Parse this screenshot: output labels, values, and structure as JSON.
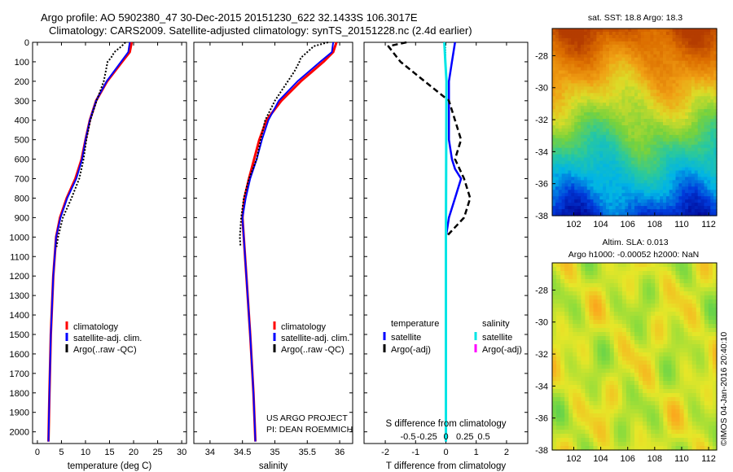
{
  "title": {
    "line1": "Argo profile: AO 5902380_47 30-Dec-2015 20151230_622 32.1433S 106.3017E",
    "line2": "Climatology: CARS2009. Satellite-adjusted climatology: synTS_20151228.nc (2.4d earlier)"
  },
  "colors": {
    "climatology": "#ff0000",
    "satellite": "#0000ff",
    "argo": "#000000",
    "sal_satellite": "#00e5e5",
    "sal_argo": "#ff00ff"
  },
  "depth_ticks": [
    "0",
    "100",
    "200",
    "300",
    "400",
    "500",
    "600",
    "700",
    "800",
    "900",
    "1000",
    "1100",
    "1200",
    "1300",
    "1400",
    "1500",
    "1600",
    "1700",
    "1800",
    "1900",
    "2000"
  ],
  "chart_data": [
    {
      "type": "line",
      "name": "temperature",
      "xlabel": "temperature (deg C)",
      "xlim": [
        -1,
        31
      ],
      "xticks": [
        "0",
        "5",
        "10",
        "15",
        "20",
        "25",
        "30"
      ],
      "ylim": [
        0,
        2060
      ],
      "series": [
        {
          "name": "climatology",
          "depth": [
            0,
            50,
            100,
            200,
            300,
            400,
            500,
            600,
            700,
            800,
            900,
            1000,
            1200,
            1500,
            1800,
            2050
          ],
          "values": [
            19.6,
            19.2,
            17.6,
            14.5,
            12.2,
            10.9,
            10.0,
            9.2,
            7.9,
            6.1,
            4.7,
            3.9,
            3.3,
            2.8,
            2.5,
            2.3
          ]
        },
        {
          "name": "satellite-adj. clim.",
          "depth": [
            0,
            50,
            100,
            200,
            300,
            400,
            500,
            600,
            700,
            800,
            900,
            1000,
            1200,
            1500,
            1800,
            2050
          ],
          "values": [
            19.2,
            18.9,
            17.4,
            14.4,
            12.2,
            10.9,
            10.0,
            9.3,
            8.1,
            6.2,
            4.8,
            3.9,
            3.3,
            2.8,
            2.5,
            2.3
          ]
        },
        {
          "name": "Argo(..raw -QC)",
          "depth": [
            0,
            20,
            50,
            80,
            100,
            150,
            200,
            300,
            400,
            500,
            600,
            700,
            800,
            900,
            1000,
            1050
          ],
          "values": [
            18.3,
            17.5,
            16.0,
            15.3,
            14.6,
            14.2,
            13.8,
            12.3,
            11.0,
            10.2,
            9.6,
            8.7,
            7.1,
            5.3,
            4.3,
            4.0
          ]
        }
      ],
      "legend": [
        "climatology",
        "satellite-adj. clim.",
        "Argo(..raw -QC)"
      ]
    },
    {
      "type": "line",
      "name": "salinity",
      "xlabel": "salinity",
      "xlim": [
        33.75,
        36.2
      ],
      "xticks": [
        "34",
        "34.5",
        "35",
        "35.5",
        "36"
      ],
      "ylim": [
        0,
        2060
      ],
      "series": [
        {
          "name": "climatology",
          "depth": [
            0,
            50,
            100,
            200,
            300,
            400,
            500,
            600,
            700,
            800,
            900,
            1000,
            1200,
            1500,
            1800,
            2050
          ],
          "values": [
            35.95,
            35.9,
            35.75,
            35.4,
            35.1,
            34.87,
            34.76,
            34.68,
            34.6,
            34.53,
            34.5,
            34.52,
            34.56,
            34.62,
            34.67,
            34.7
          ]
        },
        {
          "name": "satellite-adj. clim.",
          "depth": [
            0,
            50,
            100,
            200,
            300,
            400,
            500,
            600,
            700,
            800,
            900,
            1000,
            1200,
            1500,
            1800,
            2050
          ],
          "values": [
            35.9,
            35.88,
            35.7,
            35.35,
            35.06,
            34.9,
            34.8,
            34.72,
            34.62,
            34.55,
            34.5,
            34.52,
            34.56,
            34.62,
            34.67,
            34.7
          ]
        },
        {
          "name": "Argo(..raw -QC)",
          "depth": [
            0,
            20,
            50,
            80,
            100,
            150,
            200,
            300,
            400,
            500,
            600,
            700,
            800,
            900,
            1000,
            1050
          ],
          "values": [
            35.82,
            35.6,
            35.5,
            35.4,
            35.38,
            35.3,
            35.2,
            35.0,
            34.85,
            34.78,
            34.72,
            34.6,
            34.52,
            34.48,
            34.46,
            34.47
          ]
        }
      ],
      "legend": [
        "climatology",
        "satellite-adj. clim.",
        "Argo(..raw -QC)"
      ]
    },
    {
      "type": "line",
      "name": "differences",
      "xlabel": "T difference from climatology",
      "xlim": [
        -2.7,
        2.7
      ],
      "xticks": [
        "-2",
        "-1",
        "0",
        "1",
        "2"
      ],
      "top_label": "S difference from climatology",
      "top_ticks": [
        "-0.5",
        "-0.25",
        "0",
        "0.25",
        "0.5"
      ],
      "ylim": [
        0,
        2060
      ],
      "series": [
        {
          "name": "temperature satellite",
          "depth": [
            0,
            100,
            200,
            300,
            400,
            500,
            600,
            650,
            700,
            800,
            900,
            1000,
            1200,
            1500,
            1800,
            2050
          ],
          "values": [
            0.3,
            0.2,
            0.1,
            0.1,
            0.1,
            0.1,
            0.2,
            0.3,
            0.5,
            0.3,
            0.1,
            0.0,
            0.0,
            0.0,
            0.0,
            0.0
          ]
        },
        {
          "name": "temperature Argo(-adj)",
          "depth": [
            0,
            20,
            100,
            200,
            300,
            400,
            500,
            600,
            700,
            800,
            900,
            1000,
            1050
          ],
          "values": [
            -1.3,
            -1.9,
            -1.5,
            -0.7,
            0.1,
            0.3,
            0.5,
            0.3,
            0.6,
            0.8,
            0.6,
            0.0,
            0.0
          ]
        },
        {
          "name": "salinity satellite",
          "depth": [
            0,
            100,
            200,
            500,
            1000,
            1500,
            2050
          ],
          "values": [
            -0.05,
            -0.02,
            0.02,
            0.01,
            0.0,
            0.0,
            0.0
          ]
        },
        {
          "name": "salinity Argo(-adj)",
          "depth": [],
          "values": []
        }
      ],
      "legend_groups": [
        {
          "title": "temperature",
          "items": [
            "satellite",
            "Argo(-adj)"
          ]
        },
        {
          "title": "salinity",
          "items": [
            "satellite",
            "Argo(-adj)"
          ]
        }
      ]
    },
    {
      "type": "heatmap",
      "name": "sst-map",
      "title": "sat. SST: 18.8 Argo: 18.3",
      "xlim": [
        100.4,
        112.6
      ],
      "ylim": [
        -38,
        -26.3
      ],
      "xticks": [
        "102",
        "104",
        "106",
        "108",
        "110",
        "112"
      ],
      "yticks": [
        "-28",
        "-30",
        "-32",
        "-34",
        "-36",
        "-38"
      ]
    },
    {
      "type": "heatmap",
      "name": "sla-map",
      "title": "Altim. SLA: 0.013",
      "subtitle": "Argo h1000: -0.00052 h2000: NaN",
      "xlim": [
        100.4,
        112.6
      ],
      "ylim": [
        -38,
        -26.3
      ],
      "xticks": [
        "102",
        "104",
        "106",
        "108",
        "110",
        "112"
      ],
      "yticks": [
        "-28",
        "-30",
        "-32",
        "-34",
        "-36",
        "-38"
      ]
    }
  ],
  "annotations": {
    "project_line1": "US ARGO PROJECT",
    "project_line2": "PI: DEAN ROEMMICH",
    "credit": "©IMOS 04-Jan-2016 20:40:10"
  }
}
